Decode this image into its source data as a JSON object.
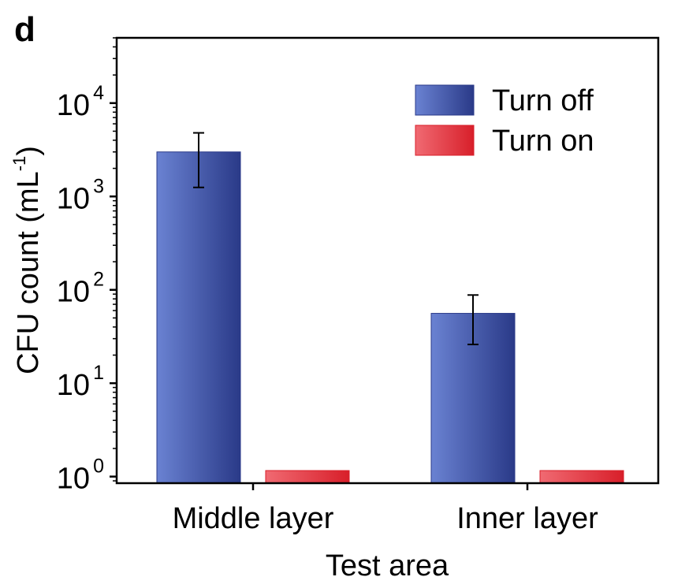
{
  "panel_label": "d",
  "chart_data": {
    "type": "bar",
    "xlabel": "Test area",
    "ylabel": "CFU count (mL",
    "ylabel_sup": "-1",
    "ylabel_close": ")",
    "yscale": "log",
    "ylim": [
      0.85,
      50000
    ],
    "yticks": [
      {
        "value": 1,
        "base": "10",
        "exp": "0"
      },
      {
        "value": 10,
        "base": "10",
        "exp": "1"
      },
      {
        "value": 100,
        "base": "10",
        "exp": "2"
      },
      {
        "value": 1000,
        "base": "10",
        "exp": "3"
      },
      {
        "value": 10000,
        "base": "10",
        "exp": "4"
      }
    ],
    "categories": [
      "Middle layer",
      "Inner layer"
    ],
    "series": [
      {
        "name": "Turn off",
        "values": [
          3000,
          56
        ],
        "error_low": [
          1250,
          26
        ],
        "error_high": [
          4800,
          88
        ],
        "color_light": "#6a82d2",
        "color_dark": "#2a3a88"
      },
      {
        "name": "Turn on",
        "values": [
          1,
          1
        ],
        "color_light": "#f06a72",
        "color_dark": "#d81f2a"
      }
    ],
    "legend_position": "top-right",
    "grid": false
  }
}
